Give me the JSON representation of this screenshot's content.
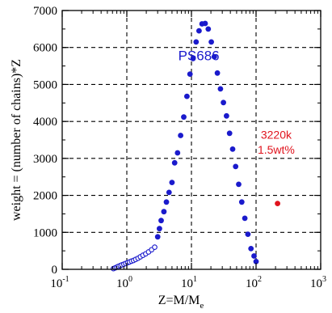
{
  "chart_data": {
    "type": "scatter",
    "title": "",
    "xlabel": "Z=M/M",
    "xlabel_sub": "e",
    "ylabel": "weight = (number of chains)*Z",
    "xscale": "log",
    "xlim": [
      0.1,
      1000
    ],
    "ylim": [
      0,
      7000
    ],
    "grid": "dashed",
    "x_ticks": [
      {
        "base": "10",
        "exp": "-1",
        "value": 0.1
      },
      {
        "base": "10",
        "exp": "0",
        "value": 1
      },
      {
        "base": "10",
        "exp": "1",
        "value": 10
      },
      {
        "base": "10",
        "exp": "2",
        "value": 100
      },
      {
        "base": "10",
        "exp": "3",
        "value": 1000
      }
    ],
    "y_ticks": [
      "0",
      "1000",
      "2000",
      "3000",
      "4000",
      "5000",
      "6000",
      "7000"
    ],
    "series": [
      {
        "name": "PS686",
        "marker": "open-circle",
        "color": "#1a1acc",
        "x": [
          0.62,
          0.66,
          0.7,
          0.74,
          0.79,
          0.84,
          0.9,
          0.96,
          1.03,
          1.1,
          1.18,
          1.27,
          1.37,
          1.49,
          1.62,
          1.78,
          1.96,
          2.17,
          2.42,
          2.7
        ],
        "y": [
          20,
          40,
          60,
          80,
          100,
          120,
          140,
          160,
          180,
          200,
          220,
          240,
          270,
          300,
          340,
          380,
          420,
          470,
          530,
          600
        ]
      },
      {
        "name": "PS686",
        "marker": "filled-circle",
        "color": "#1a1acc",
        "x": [
          3.0,
          3.2,
          3.4,
          3.75,
          4.1,
          4.5,
          5.0,
          5.5,
          6.1,
          6.8,
          7.6,
          8.5,
          9.5,
          10.6,
          11.8,
          13.1,
          14.6,
          16.3,
          18.2,
          20.3,
          22.6,
          25.2,
          28.1,
          31.3,
          34.9,
          38.9,
          43.4,
          48.3,
          53.9,
          60.1,
          67.0,
          74.8,
          83.4,
          93.0,
          100
        ],
        "y": [
          880,
          1100,
          1320,
          1560,
          1820,
          2080,
          2350,
          2880,
          3150,
          3620,
          4120,
          4680,
          5280,
          5700,
          6150,
          6450,
          6640,
          6650,
          6500,
          6150,
          5750,
          5310,
          4880,
          4510,
          4150,
          3680,
          3250,
          2780,
          2300,
          1820,
          1380,
          950,
          560,
          360,
          210
        ]
      },
      {
        "name": "3220k 1.5wt%",
        "marker": "filled-circle",
        "color": "#e0141e",
        "x": [
          215
        ],
        "y": [
          1780
        ]
      }
    ],
    "annotations": [
      {
        "text": "PS686",
        "color": "#1a1acc",
        "x": 13,
        "y": 5650
      },
      {
        "text": "3220k",
        "color": "#e0141e",
        "x": 205,
        "y": 3530
      },
      {
        "text": "1.5wt%",
        "color": "#e0141e",
        "x": 205,
        "y": 3130
      }
    ]
  }
}
